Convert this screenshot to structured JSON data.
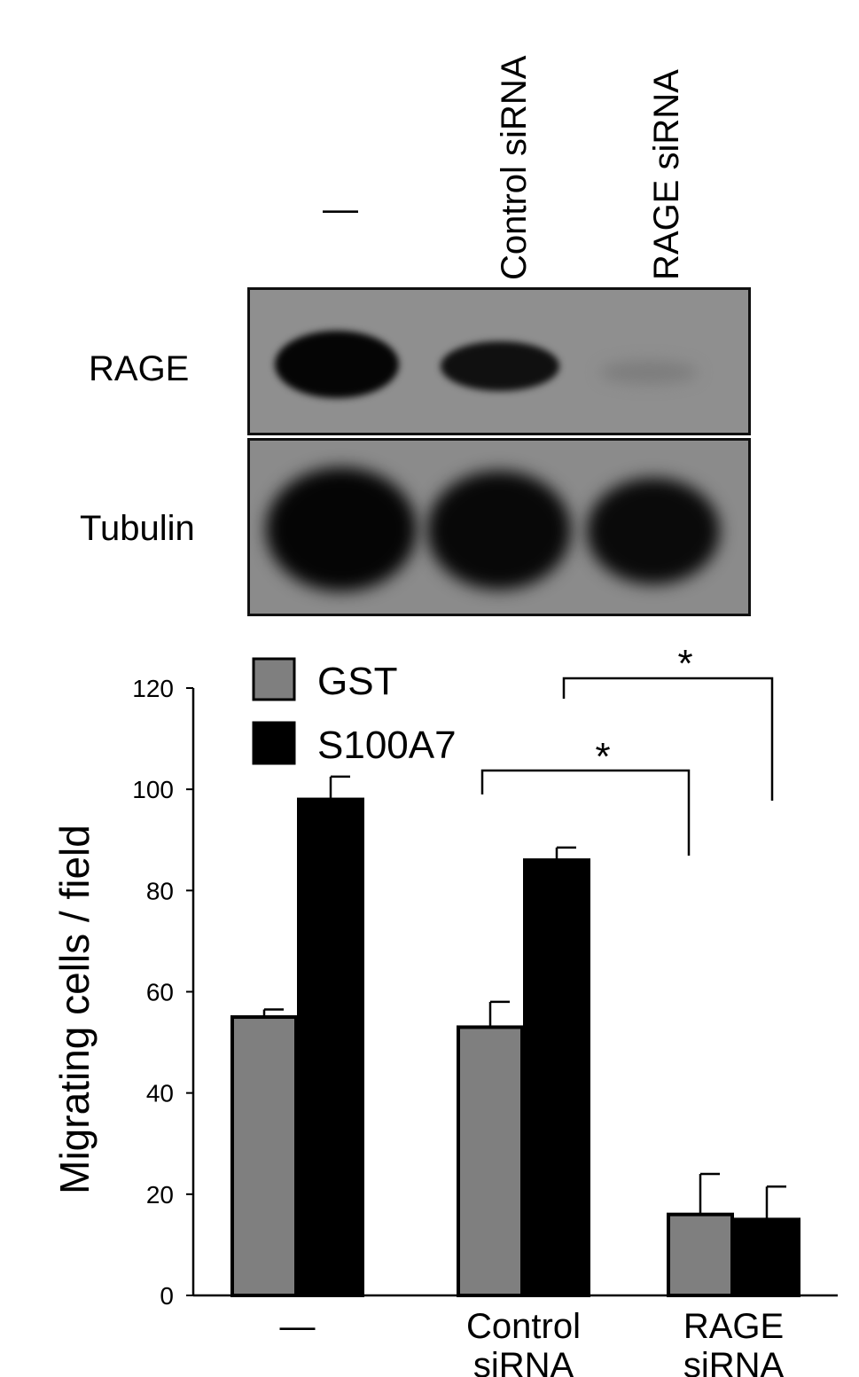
{
  "blot": {
    "lanes": [
      "—",
      "Control siRNA",
      "RAGE siRNA"
    ],
    "rows": [
      "RAGE",
      "Tubulin"
    ],
    "colors": {
      "background": "#8f8f8f",
      "band": "#060606"
    }
  },
  "chart_data": {
    "type": "bar",
    "ylabel": "Migrating cells / field",
    "ylim": [
      0,
      120
    ],
    "yticks": [
      0,
      20,
      40,
      60,
      80,
      100,
      120
    ],
    "categories": [
      [
        "—"
      ],
      [
        "Control",
        "siRNA"
      ],
      [
        "RAGE",
        "siRNA"
      ]
    ],
    "series": [
      {
        "name": "GST",
        "color": "#7f7f7f",
        "values": [
          55,
          53,
          16
        ],
        "errors": [
          1.5,
          5,
          8
        ]
      },
      {
        "name": "S100A7",
        "color": "#000000",
        "values": [
          98,
          86,
          15
        ],
        "errors": [
          4.5,
          2.5,
          6.5
        ]
      }
    ],
    "legend_position": "top-left",
    "significance": [
      {
        "from_category": 1,
        "to_category": 2,
        "label": "*"
      },
      {
        "from_category": 1,
        "to_category": 2,
        "label": "*"
      }
    ]
  }
}
